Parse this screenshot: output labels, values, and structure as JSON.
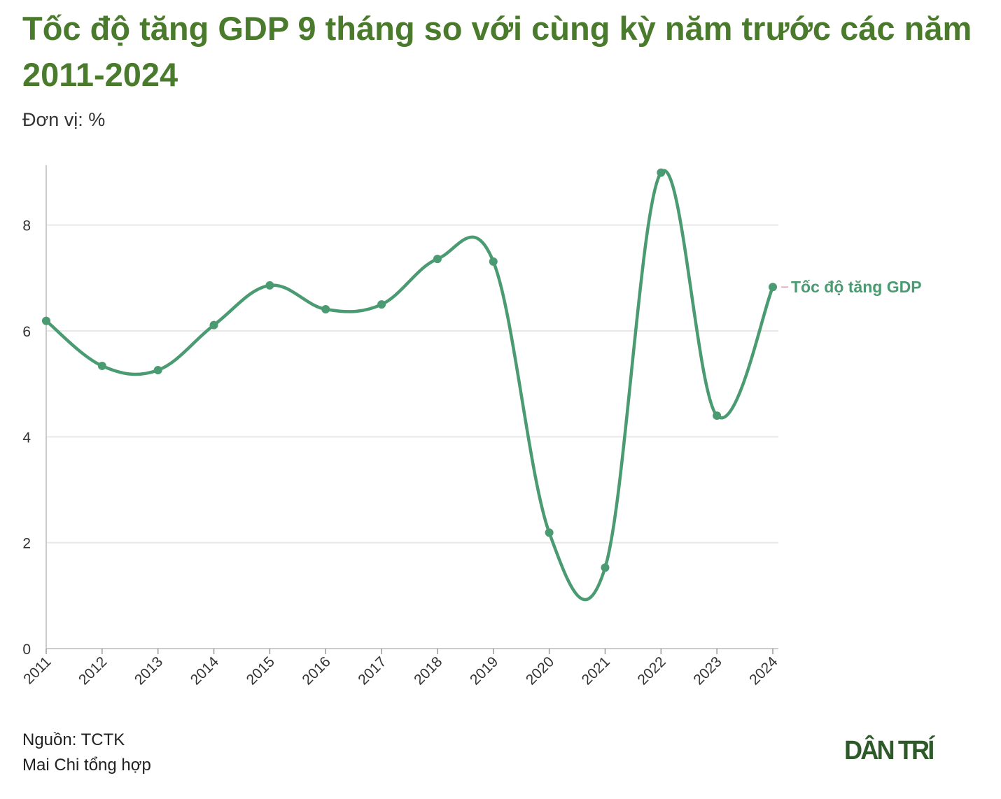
{
  "title": "Tốc độ tăng GDP 9 tháng so với cùng kỳ năm trước các năm 2011-2024",
  "subtitle": "Đơn vị: %",
  "source": "Nguồn: TCTK",
  "author": "Mai Chi tổng hợp",
  "logo_text": "DÂN TRÍ",
  "colors": {
    "title": "#4a7a2c",
    "series": "#4a9a72",
    "grid": "#e8e8e8",
    "axis": "#cccccc"
  },
  "chart_data": {
    "type": "line",
    "title": "Tốc độ tăng GDP 9 tháng so với cùng kỳ năm trước các năm 2011-2024",
    "xlabel": "",
    "ylabel": "",
    "categories": [
      "2011",
      "2012",
      "2013",
      "2014",
      "2015",
      "2016",
      "2017",
      "2018",
      "2019",
      "2020",
      "2021",
      "2022",
      "2023",
      "2024"
    ],
    "series": [
      {
        "name": "Tốc độ tăng GDP",
        "values": [
          6.19,
          5.34,
          5.26,
          6.11,
          6.86,
          6.41,
          6.5,
          7.36,
          7.31,
          2.19,
          1.53,
          8.99,
          4.4,
          6.83
        ]
      }
    ],
    "ylim": [
      0,
      9
    ],
    "yticks": [
      0,
      2,
      4,
      6,
      8
    ],
    "grid": true,
    "legend": "inline-end-label"
  }
}
